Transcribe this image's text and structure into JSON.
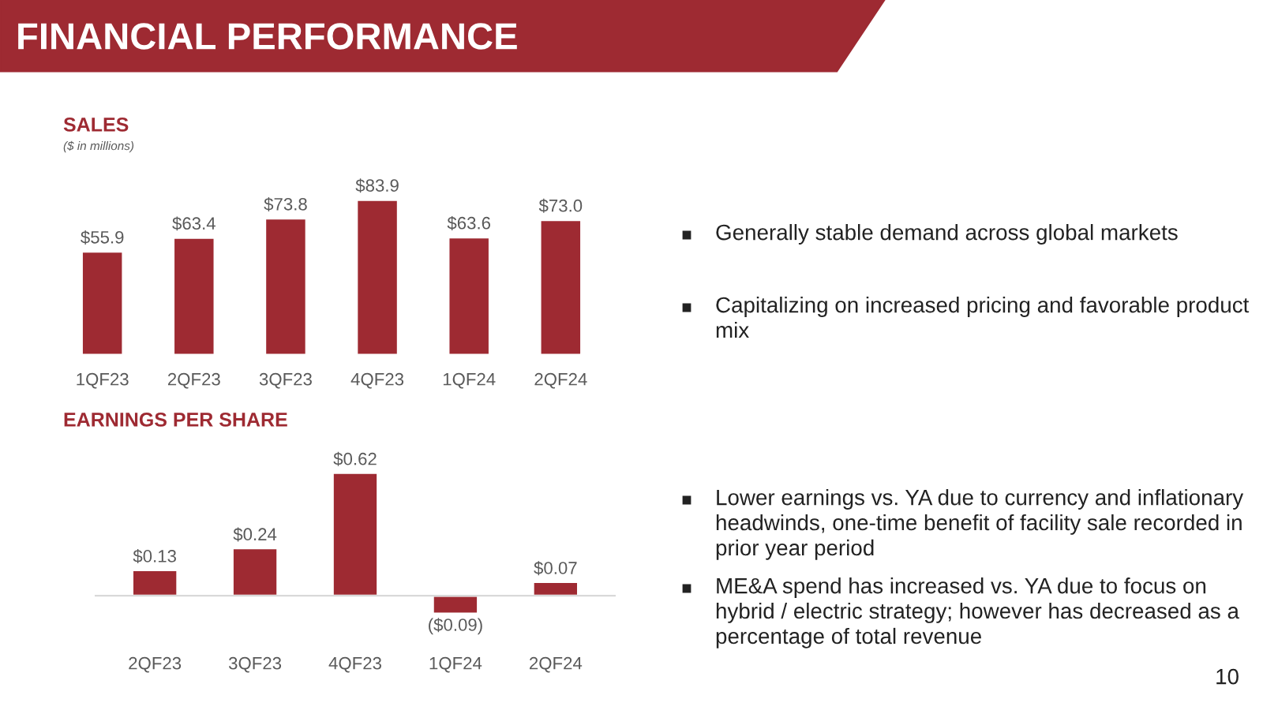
{
  "chart_data": [
    {
      "type": "bar",
      "title": "SALES",
      "subtitle": "($ in millions)",
      "categories": [
        "1QF23",
        "2QF23",
        "3QF23",
        "4QF23",
        "1QF24",
        "2QF24"
      ],
      "values": [
        55.9,
        63.4,
        73.8,
        83.9,
        63.6,
        73.0
      ],
      "color": "#9e2a32",
      "value_labels": [
        "$55.9",
        "$63.4",
        "$73.8",
        "$83.9",
        "$63.6",
        "$73.0"
      ]
    },
    {
      "type": "bar",
      "title": "EARNINGS PER SHARE",
      "categories": [
        "2QF23",
        "3QF23",
        "4QF23",
        "1QF24",
        "2QF24"
      ],
      "values": [
        0.13,
        0.24,
        0.62,
        -0.09,
        0.07
      ],
      "color": "#9e2a32",
      "value_labels": [
        "$0.13",
        "$0.24",
        "$0.62",
        "($0.09)",
        "$0.07"
      ]
    },
    {
      "type": "other",
      "title": "FINANCIAL PERFORMANCE",
      "annotations": [
        "Generally stable demand across global markets",
        "Capitalizing on increased pricing and favorable product mix",
        "Lower earnings vs. YA due to currency and inflationary headwinds, one-time benefit of facility sale recorded in prior year period",
        "ME&A spend has increased vs. YA due to focus on hybrid / electric strategy; however has decreased as a percentage of total revenue",
        "10"
      ]
    }
  ]
}
